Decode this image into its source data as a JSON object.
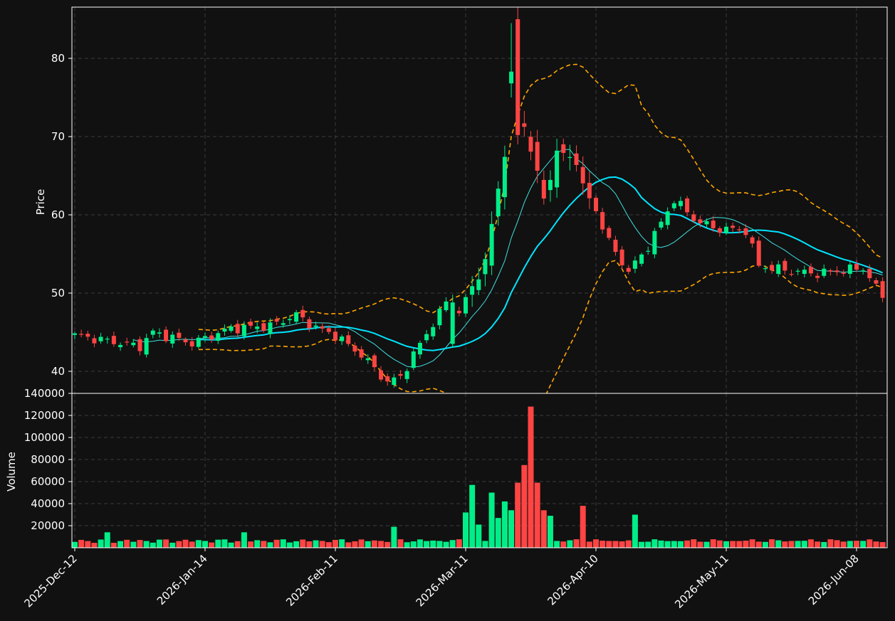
{
  "theme": {
    "background": "#111111",
    "up_color": "#00ee88",
    "down_color": "#ff4444",
    "ma_fast_color": "#40e0e0",
    "ma_slow_color": "#00e5ff",
    "band_color": "#ffa500",
    "grid_color": "#3a3a3a",
    "text_color": "#ffffff"
  },
  "chart_data": [
    {
      "type": "candlestick",
      "panel": "price",
      "ylabel": "Price",
      "ylim": [
        37.2,
        86.7
      ],
      "yticks": [
        40,
        50,
        60,
        70,
        80
      ],
      "grid": true,
      "x_tick_labels": [
        "2025-Dec-12",
        "2026-Jan-14",
        "2026-Feb-11",
        "2026-Mar-11",
        "2026-Apr-10",
        "2026-May-11",
        "2026-Jun-08"
      ],
      "x_tick_index": [
        0,
        20,
        40,
        60,
        80,
        100,
        120
      ],
      "overlays": [
        "moving average (short)",
        "moving average (long)",
        "upper band",
        "lower band"
      ],
      "close_anchors": [
        [
          0,
          44.6
        ],
        [
          10,
          43.2
        ],
        [
          12,
          45.0
        ],
        [
          18,
          43.6
        ],
        [
          24,
          45.5
        ],
        [
          30,
          45.8
        ],
        [
          34,
          47.2
        ],
        [
          37,
          45.6
        ],
        [
          40,
          44.6
        ],
        [
          44,
          42.1
        ],
        [
          48,
          38.6
        ],
        [
          50,
          39.3
        ],
        [
          53,
          43.5
        ],
        [
          57,
          48.8
        ],
        [
          59,
          47.5
        ],
        [
          63,
          54.0
        ],
        [
          66,
          68.0
        ],
        [
          69,
          71.5
        ],
        [
          72,
          62.0
        ],
        [
          74,
          68.0
        ],
        [
          77,
          67.0
        ],
        [
          78,
          63.5
        ],
        [
          80,
          60.6
        ],
        [
          82,
          56.5
        ],
        [
          85,
          52.7
        ],
        [
          88,
          56.0
        ],
        [
          92,
          62.0
        ],
        [
          95,
          59.5
        ],
        [
          98,
          58.3
        ],
        [
          103,
          58.0
        ],
        [
          105,
          53.5
        ],
        [
          110,
          52.8
        ],
        [
          114,
          52.5
        ],
        [
          118,
          52.9
        ],
        [
          121,
          53.2
        ],
        [
          124,
          49.5
        ]
      ],
      "notable_candles": [
        {
          "index": 58,
          "open": 43.5,
          "high": 49.8,
          "low": 43.0,
          "close": 48.8
        },
        {
          "index": 67,
          "open": 76.8,
          "high": 84.5,
          "low": 75.0,
          "close": 78.3
        },
        {
          "index": 68,
          "open": 85.0,
          "high": 86.5,
          "low": 69.0,
          "close": 70.2
        }
      ]
    },
    {
      "type": "bar",
      "panel": "volume",
      "ylabel": "Volume",
      "ylim": [
        0,
        140000
      ],
      "yticks": [
        20000,
        40000,
        60000,
        80000,
        100000,
        120000,
        140000
      ],
      "grid": true,
      "peaks": [
        [
          60,
          32000
        ],
        [
          61,
          57000
        ],
        [
          62,
          21000
        ],
        [
          64,
          50000
        ],
        [
          65,
          27000
        ],
        [
          66,
          42000
        ],
        [
          67,
          34000
        ],
        [
          68,
          59000
        ],
        [
          69,
          75000
        ],
        [
          70,
          128000
        ],
        [
          71,
          59000
        ],
        [
          72,
          34000
        ],
        [
          73,
          29000
        ],
        [
          78,
          38000
        ],
        [
          86,
          30000
        ],
        [
          5,
          14000
        ],
        [
          26,
          14000
        ],
        [
          49,
          19000
        ]
      ]
    }
  ]
}
